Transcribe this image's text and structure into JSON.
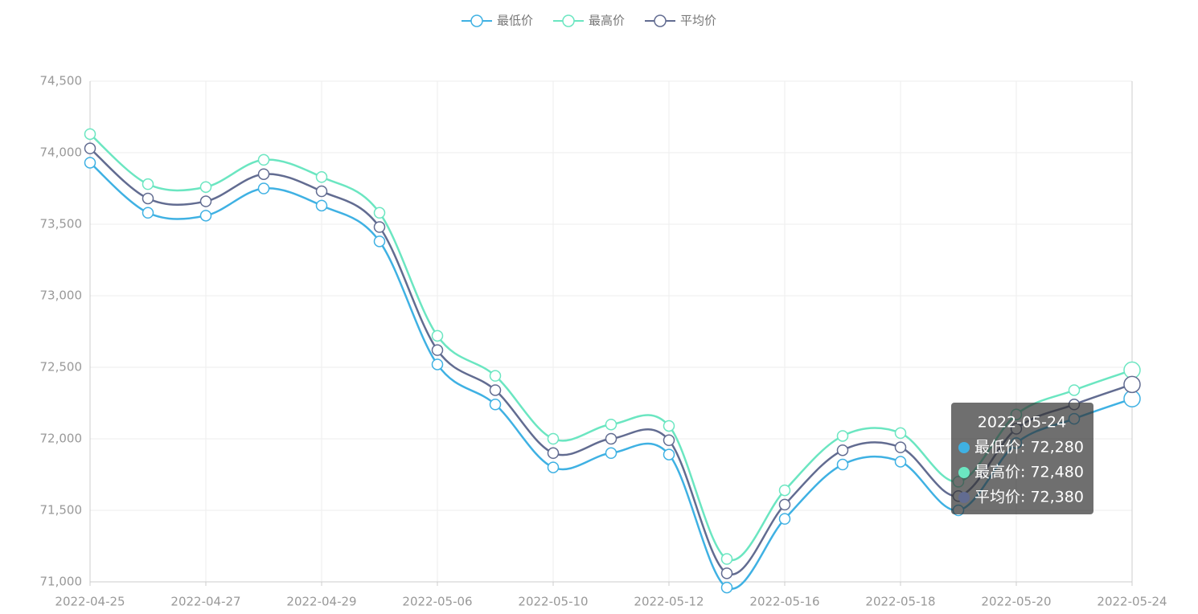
{
  "chart_data": {
    "type": "line",
    "categories": [
      "2022-04-25",
      null,
      "2022-04-27",
      null,
      "2022-04-29",
      null,
      "2022-05-06",
      null,
      "2022-05-10",
      null,
      "2022-05-12",
      null,
      "2022-05-16",
      null,
      "2022-05-18",
      null,
      "2022-05-20",
      null,
      "2022-05-24"
    ],
    "series": [
      {
        "name": "最低价",
        "color": "#3fb1e3",
        "values": [
          73930,
          73580,
          73560,
          73750,
          73630,
          73380,
          72520,
          72240,
          71800,
          71900,
          71890,
          70960,
          71440,
          71820,
          71840,
          71500,
          71970,
          72140,
          72280
        ]
      },
      {
        "name": "最高价",
        "color": "#6be6c1",
        "values": [
          74130,
          73780,
          73760,
          73950,
          73830,
          73580,
          72720,
          72440,
          72000,
          72100,
          72090,
          71160,
          71640,
          72020,
          72040,
          71700,
          72170,
          72340,
          72480
        ]
      },
      {
        "name": "平均价",
        "color": "#626c91",
        "values": [
          74030,
          73680,
          73660,
          73850,
          73730,
          73480,
          72620,
          72340,
          71900,
          72000,
          71990,
          71060,
          71540,
          71920,
          71940,
          71600,
          72070,
          72240,
          72380
        ]
      }
    ],
    "ylim": [
      71000,
      74500
    ],
    "yticks": [
      {
        "value": 71000,
        "label": "71,000"
      },
      {
        "value": 71500,
        "label": "71,500"
      },
      {
        "value": 72000,
        "label": "72,000"
      },
      {
        "value": 72500,
        "label": "72,500"
      },
      {
        "value": 73000,
        "label": "73,000"
      },
      {
        "value": 73500,
        "label": "73,500"
      },
      {
        "value": 74000,
        "label": "74,000"
      },
      {
        "value": 74500,
        "label": "74,500"
      }
    ],
    "grid": true,
    "legend": "top",
    "tooltip": {
      "title": "2022-05-24",
      "lines": [
        "最低价: 72,280",
        "最高价: 72,480",
        "平均价: 72,380"
      ]
    }
  }
}
